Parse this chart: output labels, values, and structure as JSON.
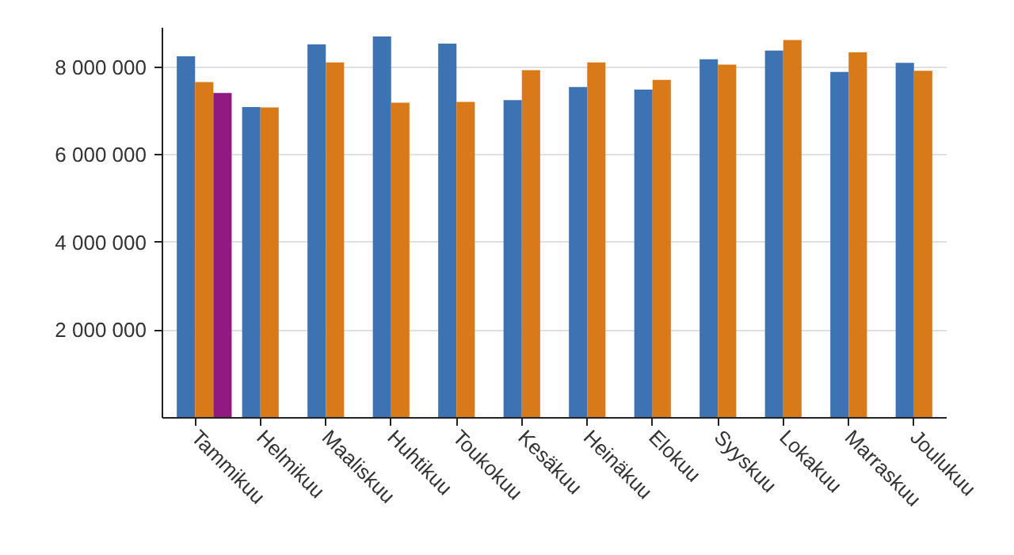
{
  "chart_data": {
    "type": "bar",
    "categories": [
      "Tammikuu",
      "Helmikuu",
      "Maaliskuu",
      "Huhtikuu",
      "Toukokuu",
      "Kesäkuu",
      "Heinäkuu",
      "Elokuu",
      "Syyskuu",
      "Lokakuu",
      "Marraskuu",
      "Joulukuu"
    ],
    "series": [
      {
        "color": "#3d73b3",
        "values": [
          8250000,
          7090000,
          8520000,
          8700000,
          8540000,
          7250000,
          7550000,
          7490000,
          8180000,
          8380000,
          7890000,
          8100000
        ]
      },
      {
        "color": "#d97a1a",
        "values": [
          7660000,
          7080000,
          8110000,
          7190000,
          7210000,
          7930000,
          8110000,
          7710000,
          8060000,
          8620000,
          8340000,
          7920000
        ]
      },
      {
        "color": "#911a82",
        "values": [
          7410000,
          null,
          null,
          null,
          null,
          null,
          null,
          null,
          null,
          null,
          null,
          null
        ]
      }
    ],
    "ylim": [
      0,
      8900000
    ],
    "yticks": [
      {
        "value": 2000000,
        "label": "2 000 000"
      },
      {
        "value": 4000000,
        "label": "4 000 000"
      },
      {
        "value": 6000000,
        "label": "6 000 000"
      },
      {
        "value": 8000000,
        "label": "8 000 000"
      }
    ],
    "grid": "y"
  }
}
